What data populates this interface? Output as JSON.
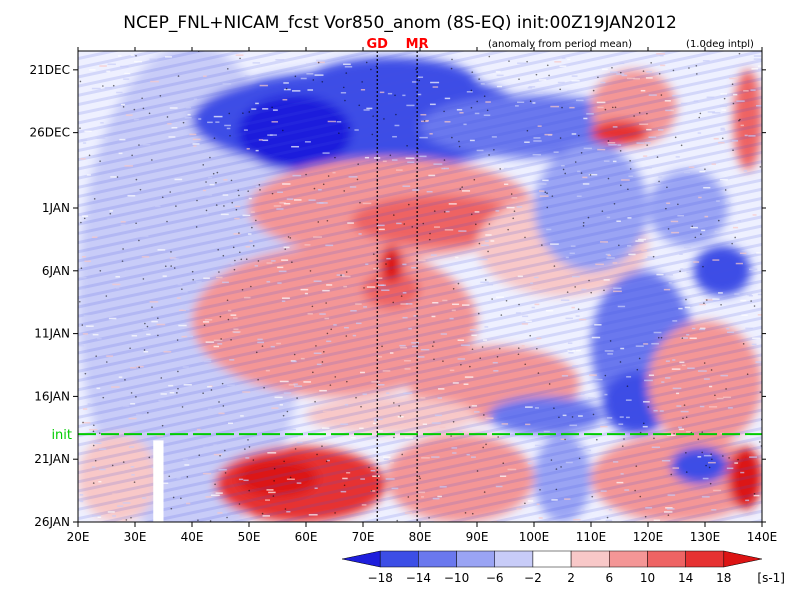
{
  "chart_data": {
    "type": "heatmap",
    "title": "NCEP_FNL+NICAM_fcst Vor850_anom (8S-EQ) init:00Z19JAN2012",
    "subtitle_note": "(anomaly from period mean)",
    "interp_note": "(1.0deg intpl)",
    "x_ticks": [
      "20E",
      "30E",
      "40E",
      "50E",
      "60E",
      "70E",
      "80E",
      "90E",
      "100E",
      "110E",
      "120E",
      "130E",
      "140E"
    ],
    "x_range": [
      20,
      140
    ],
    "y_ticks": [
      "21DEC",
      "26DEC",
      "1JAN",
      "6JAN",
      "11JAN",
      "16JAN",
      "21JAN",
      "26JAN"
    ],
    "y_tick_days": [
      0,
      5,
      11,
      16,
      21,
      26,
      31,
      36
    ],
    "y_range_days": [
      -1.5,
      36
    ],
    "init_line": {
      "label": "init",
      "day": 29,
      "color": "#00cc00"
    },
    "site_lines": [
      {
        "label": "GD",
        "lon": 72.5,
        "color": "#ff0000"
      },
      {
        "label": "MR",
        "lon": 79.5,
        "color": "#ff0000"
      }
    ],
    "colorbar": {
      "unit": "[s-1]",
      "ticks": [
        "−18",
        "−14",
        "−10",
        "−6",
        "−2",
        "2",
        "6",
        "10",
        "14",
        "18"
      ],
      "colors": [
        "#1e1edc",
        "#3c4ee6",
        "#6a78ee",
        "#9aa4f4",
        "#c8ccf8",
        "#ffffff",
        "#f8c8c8",
        "#f49696",
        "#ee6464",
        "#e63232",
        "#dc1414"
      ]
    }
  }
}
